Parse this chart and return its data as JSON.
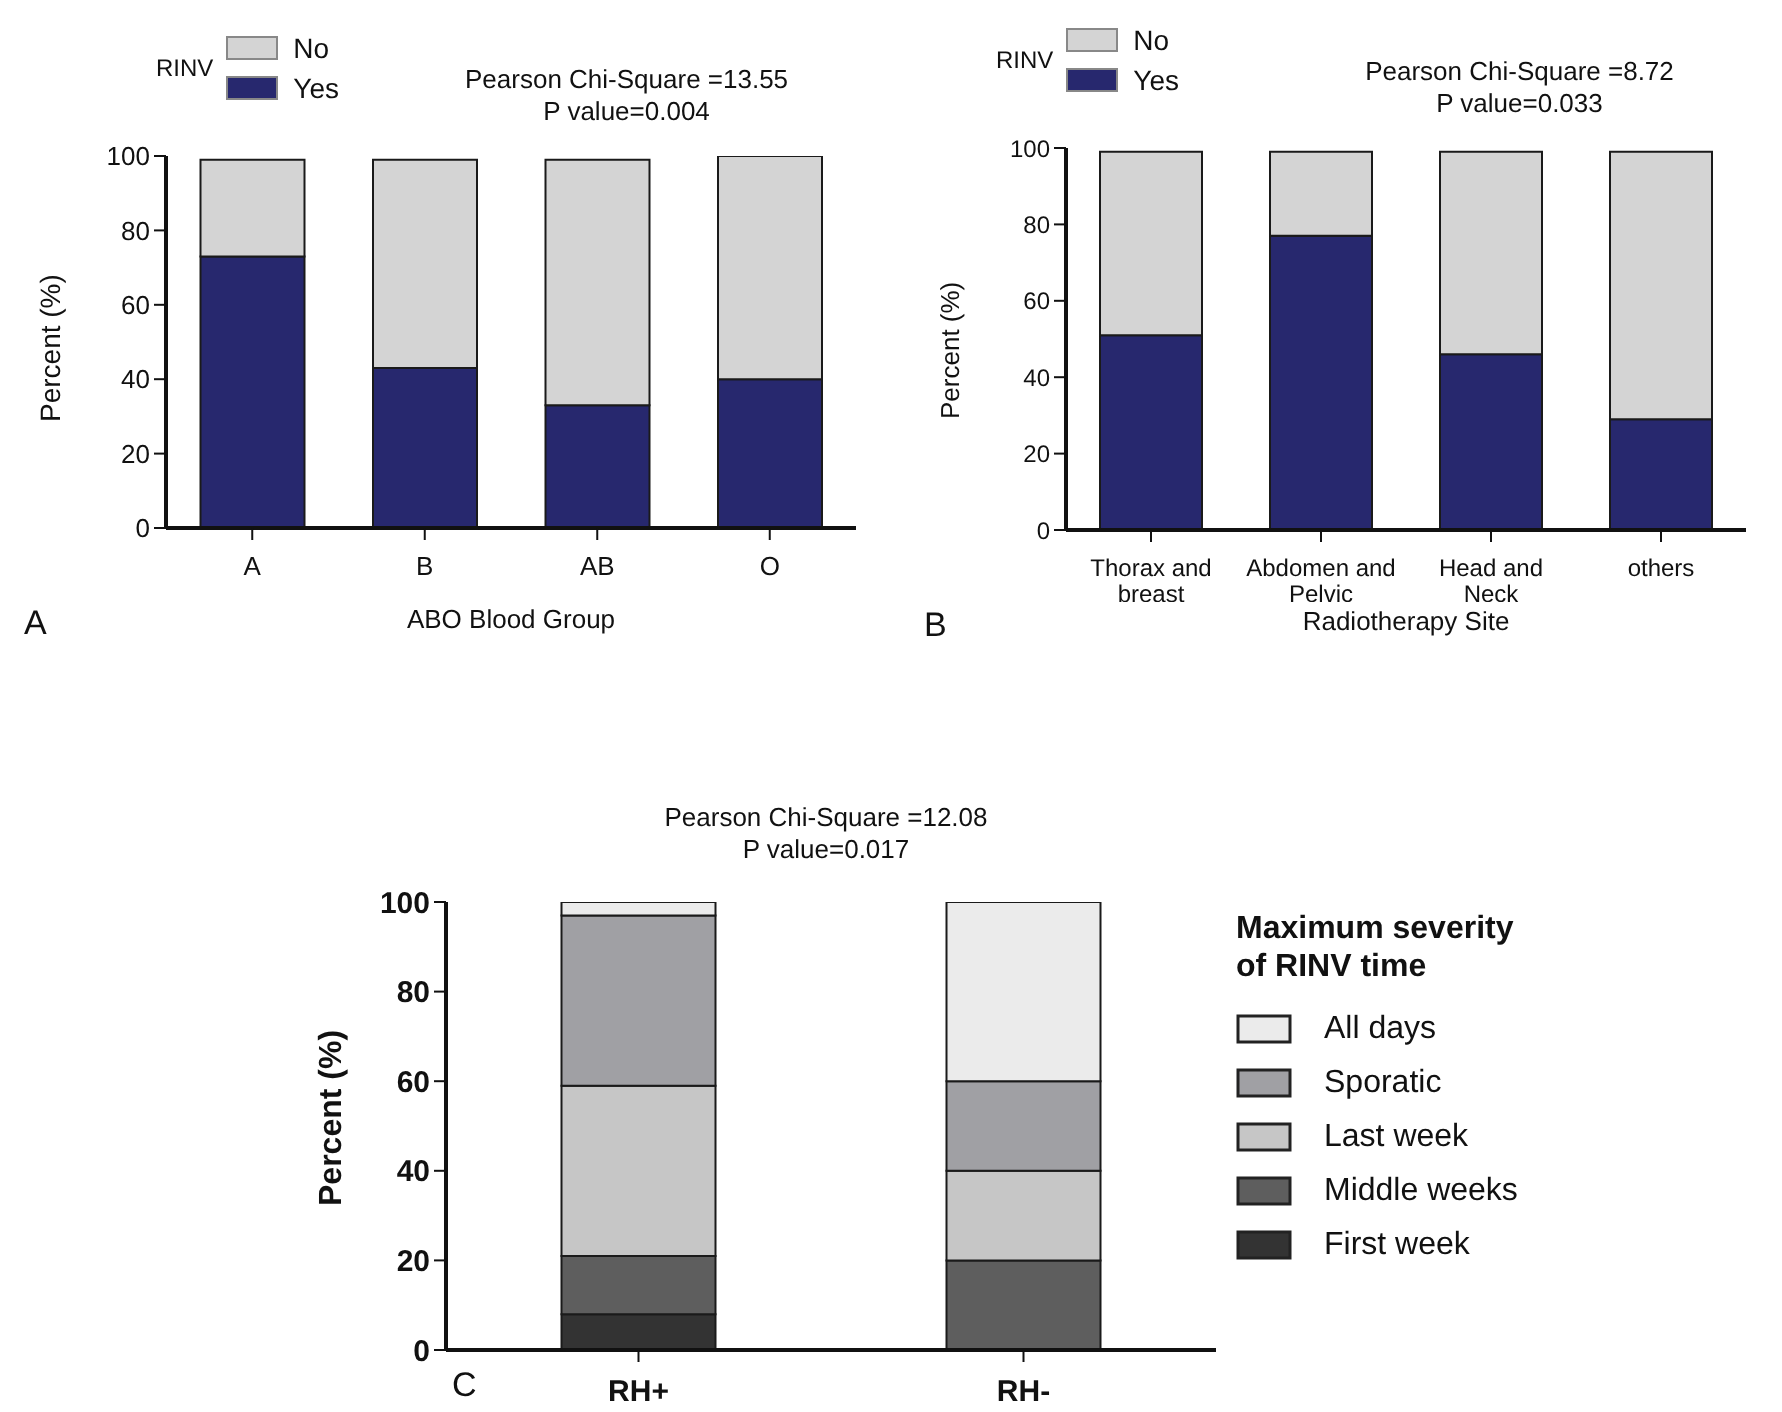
{
  "chart_data": [
    {
      "type": "bar",
      "stacked": true,
      "title": "Pearson Chi-Square =13.55",
      "subtitle": "P value=0.004",
      "xlabel": "ABO Blood Group",
      "ylabel": "Percent (%)",
      "legend_title": "RINV",
      "legend": "top left",
      "annotations": [
        "A"
      ],
      "categories": [
        "A",
        "B",
        "AB",
        "O"
      ],
      "ylim": [
        0,
        100
      ],
      "yticks": [
        0,
        20,
        40,
        60,
        80,
        100
      ],
      "series": [
        {
          "name": "Yes",
          "color": "#27286e",
          "values": [
            73,
            43,
            33,
            40
          ]
        },
        {
          "name": "No",
          "color": "#d4d4d4",
          "values": [
            26,
            56,
            66,
            60
          ]
        }
      ]
    },
    {
      "type": "bar",
      "stacked": true,
      "title": "Pearson Chi-Square =8.72",
      "subtitle": "P value=0.033",
      "xlabel": "Radiotherapy Site",
      "ylabel": "Percent (%)",
      "legend_title": "RINV",
      "legend": "top left",
      "annotations": [
        "B"
      ],
      "categories": [
        "Thorax and breast",
        "Abdomen and Pelvic",
        "Head and Neck",
        "others"
      ],
      "ylim": [
        0,
        100
      ],
      "yticks": [
        0,
        20,
        40,
        60,
        80,
        100
      ],
      "series": [
        {
          "name": "Yes",
          "color": "#27286e",
          "values": [
            51,
            77,
            46,
            29
          ]
        },
        {
          "name": "No",
          "color": "#d4d4d4",
          "values": [
            48,
            22,
            53,
            70
          ]
        }
      ]
    },
    {
      "type": "bar",
      "stacked": true,
      "title": "Pearson Chi-Square =12.08",
      "subtitle": "P value=0.017",
      "ylabel": "Percent (%)",
      "legend_title": "Maximum severity of RINV time",
      "legend": "right",
      "annotations": [
        "C"
      ],
      "categories": [
        "RH+",
        "RH-"
      ],
      "ylim": [
        0,
        100
      ],
      "yticks": [
        0,
        20,
        40,
        60,
        80,
        100
      ],
      "series": [
        {
          "name": "First week",
          "color": "#333333",
          "values": [
            8,
            0
          ]
        },
        {
          "name": "Middle weeks",
          "color": "#5e5e5e",
          "values": [
            13,
            20
          ]
        },
        {
          "name": "Last week",
          "color": "#c6c6c6",
          "values": [
            38,
            20
          ]
        },
        {
          "name": "Sporatic",
          "color": "#a0a0a4",
          "values": [
            38,
            20
          ]
        },
        {
          "name": "All days",
          "color": "#ebebeb",
          "values": [
            3,
            40
          ]
        }
      ]
    }
  ]
}
